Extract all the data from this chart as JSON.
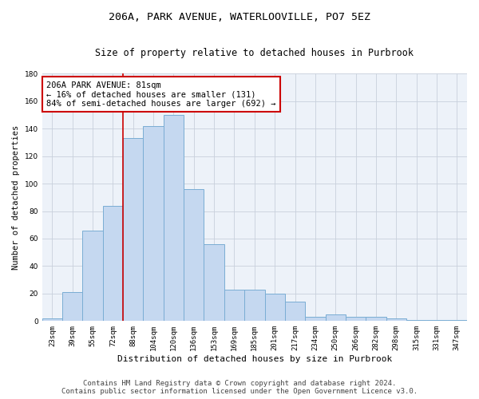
{
  "title_line1": "206A, PARK AVENUE, WATERLOOVILLE, PO7 5EZ",
  "title_line2": "Size of property relative to detached houses in Purbrook",
  "xlabel": "Distribution of detached houses by size in Purbrook",
  "ylabel": "Number of detached properties",
  "categories": [
    "23sqm",
    "39sqm",
    "55sqm",
    "72sqm",
    "88sqm",
    "104sqm",
    "120sqm",
    "136sqm",
    "153sqm",
    "169sqm",
    "185sqm",
    "201sqm",
    "217sqm",
    "234sqm",
    "250sqm",
    "266sqm",
    "282sqm",
    "298sqm",
    "315sqm",
    "331sqm",
    "347sqm"
  ],
  "values": [
    2,
    21,
    66,
    84,
    133,
    142,
    150,
    96,
    56,
    23,
    23,
    20,
    14,
    3,
    5,
    3,
    3,
    2,
    1,
    1,
    1
  ],
  "bar_color": "#c5d8f0",
  "bar_edge_color": "#7aadd4",
  "vline_color": "#cc0000",
  "vline_x_index": 3.5,
  "annotation_text": "206A PARK AVENUE: 81sqm\n← 16% of detached houses are smaller (131)\n84% of semi-detached houses are larger (692) →",
  "annotation_box_color": "#ffffff",
  "annotation_box_edge": "#cc0000",
  "ylim": [
    0,
    180
  ],
  "yticks": [
    0,
    20,
    40,
    60,
    80,
    100,
    120,
    140,
    160,
    180
  ],
  "grid_color": "#c8d0dc",
  "bg_color": "#edf2f9",
  "footer_line1": "Contains HM Land Registry data © Crown copyright and database right 2024.",
  "footer_line2": "Contains public sector information licensed under the Open Government Licence v3.0.",
  "title_fontsize": 9.5,
  "subtitle_fontsize": 8.5,
  "tick_fontsize": 6.5,
  "ylabel_fontsize": 7.5,
  "xlabel_fontsize": 8,
  "footer_fontsize": 6.5,
  "annotation_fontsize": 7.5
}
